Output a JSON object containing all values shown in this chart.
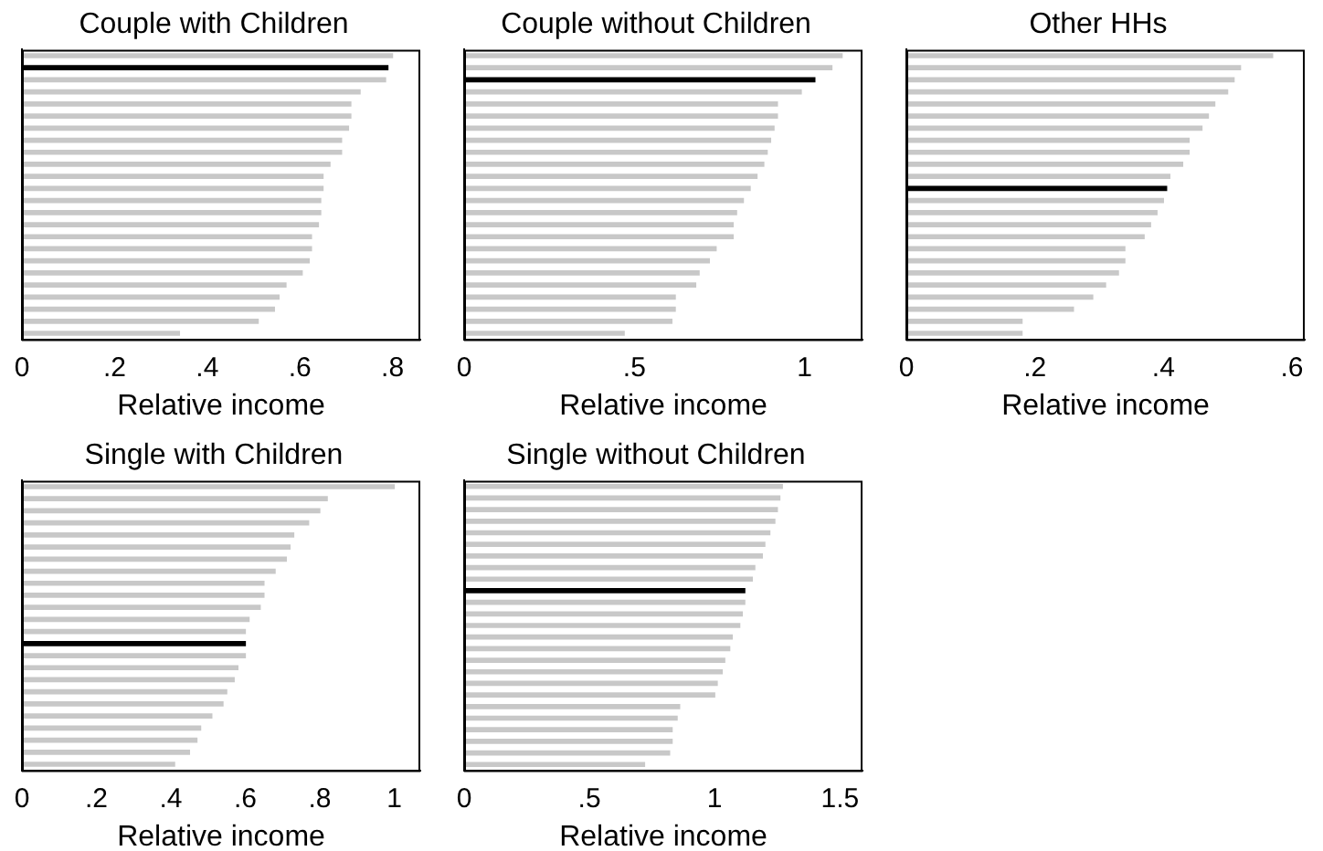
{
  "chart_data": [
    {
      "type": "bar",
      "orientation": "horizontal",
      "title": "Couple with Children",
      "xlabel": "Relative income",
      "tick_labels": "x",
      "grid": false,
      "categories": [
        null,
        null,
        null,
        null,
        null,
        null,
        null,
        null,
        null,
        null,
        null,
        null,
        null,
        null,
        null,
        null,
        null,
        null,
        null,
        null,
        null,
        null,
        null,
        null
      ],
      "values": [
        0.8,
        0.79,
        0.785,
        0.73,
        0.71,
        0.71,
        0.705,
        0.69,
        0.69,
        0.665,
        0.65,
        0.65,
        0.645,
        0.645,
        0.64,
        0.625,
        0.625,
        0.62,
        0.605,
        0.57,
        0.555,
        0.545,
        0.51,
        0.34
      ],
      "colors": [
        "#c8c8c8",
        "#000000",
        "#c8c8c8",
        "#c8c8c8",
        "#c8c8c8",
        "#c8c8c8",
        "#c8c8c8",
        "#c8c8c8",
        "#c8c8c8",
        "#c8c8c8",
        "#c8c8c8",
        "#c8c8c8",
        "#c8c8c8",
        "#c8c8c8",
        "#c8c8c8",
        "#c8c8c8",
        "#c8c8c8",
        "#c8c8c8",
        "#c8c8c8",
        "#c8c8c8",
        "#c8c8c8",
        "#c8c8c8",
        "#c8c8c8",
        "#c8c8c8"
      ],
      "xlim": [
        0,
        0.86
      ],
      "xticks": [
        0,
        {
          "value": 0.2,
          "label": ".2"
        },
        {
          "value": 0.4,
          "label": ".4"
        },
        {
          "value": 0.6,
          "label": ".6"
        },
        {
          "value": 0.8,
          "label": ".8"
        }
      ]
    },
    {
      "type": "bar",
      "orientation": "horizontal",
      "title": "Couple without Children",
      "xlabel": "Relative income",
      "tick_labels": "x",
      "grid": false,
      "categories": [
        null,
        null,
        null,
        null,
        null,
        null,
        null,
        null,
        null,
        null,
        null,
        null,
        null,
        null,
        null,
        null,
        null,
        null,
        null,
        null,
        null,
        null,
        null,
        null
      ],
      "values": [
        1.11,
        1.08,
        1.03,
        0.99,
        0.92,
        0.92,
        0.91,
        0.9,
        0.89,
        0.88,
        0.86,
        0.84,
        0.82,
        0.8,
        0.79,
        0.79,
        0.74,
        0.72,
        0.69,
        0.68,
        0.62,
        0.62,
        0.61,
        0.47
      ],
      "colors": [
        "#c8c8c8",
        "#c8c8c8",
        "#000000",
        "#c8c8c8",
        "#c8c8c8",
        "#c8c8c8",
        "#c8c8c8",
        "#c8c8c8",
        "#c8c8c8",
        "#c8c8c8",
        "#c8c8c8",
        "#c8c8c8",
        "#c8c8c8",
        "#c8c8c8",
        "#c8c8c8",
        "#c8c8c8",
        "#c8c8c8",
        "#c8c8c8",
        "#c8c8c8",
        "#c8c8c8",
        "#c8c8c8",
        "#c8c8c8",
        "#c8c8c8",
        "#c8c8c8"
      ],
      "xlim": [
        0,
        1.17
      ],
      "xticks": [
        0,
        {
          "value": 0.5,
          "label": ".5"
        },
        1
      ]
    },
    {
      "type": "bar",
      "orientation": "horizontal",
      "title": "Other HHs",
      "xlabel": "Relative income",
      "tick_labels": "x",
      "grid": false,
      "categories": [
        null,
        null,
        null,
        null,
        null,
        null,
        null,
        null,
        null,
        null,
        null,
        null,
        null,
        null,
        null,
        null,
        null,
        null,
        null,
        null,
        null,
        null,
        null,
        null
      ],
      "values": [
        0.57,
        0.52,
        0.51,
        0.5,
        0.48,
        0.47,
        0.46,
        0.44,
        0.44,
        0.43,
        0.41,
        0.405,
        0.4,
        0.39,
        0.38,
        0.37,
        0.34,
        0.34,
        0.33,
        0.31,
        0.29,
        0.26,
        0.18,
        0.18
      ],
      "colors": [
        "#c8c8c8",
        "#c8c8c8",
        "#c8c8c8",
        "#c8c8c8",
        "#c8c8c8",
        "#c8c8c8",
        "#c8c8c8",
        "#c8c8c8",
        "#c8c8c8",
        "#c8c8c8",
        "#c8c8c8",
        "#000000",
        "#c8c8c8",
        "#c8c8c8",
        "#c8c8c8",
        "#c8c8c8",
        "#c8c8c8",
        "#c8c8c8",
        "#c8c8c8",
        "#c8c8c8",
        "#c8c8c8",
        "#c8c8c8",
        "#c8c8c8",
        "#c8c8c8"
      ],
      "xlim": [
        0,
        0.62
      ],
      "xticks": [
        0,
        {
          "value": 0.2,
          "label": ".2"
        },
        {
          "value": 0.4,
          "label": ".4"
        },
        {
          "value": 0.6,
          "label": ".6"
        }
      ]
    },
    {
      "type": "bar",
      "orientation": "horizontal",
      "title": "Single with Children",
      "xlabel": "Relative income",
      "tick_labels": "x",
      "grid": false,
      "categories": [
        null,
        null,
        null,
        null,
        null,
        null,
        null,
        null,
        null,
        null,
        null,
        null,
        null,
        null,
        null,
        null,
        null,
        null,
        null,
        null,
        null,
        null,
        null,
        null
      ],
      "values": [
        1.0,
        0.82,
        0.8,
        0.77,
        0.73,
        0.72,
        0.71,
        0.68,
        0.65,
        0.65,
        0.64,
        0.61,
        0.6,
        0.6,
        0.6,
        0.58,
        0.57,
        0.55,
        0.54,
        0.51,
        0.48,
        0.47,
        0.45,
        0.41
      ],
      "colors": [
        "#c8c8c8",
        "#c8c8c8",
        "#c8c8c8",
        "#c8c8c8",
        "#c8c8c8",
        "#c8c8c8",
        "#c8c8c8",
        "#c8c8c8",
        "#c8c8c8",
        "#c8c8c8",
        "#c8c8c8",
        "#c8c8c8",
        "#c8c8c8",
        "#000000",
        "#c8c8c8",
        "#c8c8c8",
        "#c8c8c8",
        "#c8c8c8",
        "#c8c8c8",
        "#c8c8c8",
        "#c8c8c8",
        "#c8c8c8",
        "#c8c8c8",
        "#c8c8c8"
      ],
      "xlim": [
        0,
        1.07
      ],
      "xticks": [
        0,
        {
          "value": 0.2,
          "label": ".2"
        },
        {
          "value": 0.4,
          "label": ".4"
        },
        {
          "value": 0.6,
          "label": ".6"
        },
        {
          "value": 0.8,
          "label": ".8"
        },
        1
      ]
    },
    {
      "type": "bar",
      "orientation": "horizontal",
      "title": "Single without Children",
      "xlabel": "Relative income",
      "tick_labels": "x",
      "grid": false,
      "categories": [
        null,
        null,
        null,
        null,
        null,
        null,
        null,
        null,
        null,
        null,
        null,
        null,
        null,
        null,
        null,
        null,
        null,
        null,
        null,
        null,
        null,
        null,
        null,
        null,
        null
      ],
      "values": [
        1.27,
        1.26,
        1.25,
        1.24,
        1.22,
        1.2,
        1.19,
        1.16,
        1.15,
        1.12,
        1.12,
        1.11,
        1.1,
        1.07,
        1.06,
        1.04,
        1.03,
        1.01,
        1.0,
        0.86,
        0.85,
        0.83,
        0.83,
        0.82,
        0.72
      ],
      "colors": [
        "#c8c8c8",
        "#c8c8c8",
        "#c8c8c8",
        "#c8c8c8",
        "#c8c8c8",
        "#c8c8c8",
        "#c8c8c8",
        "#c8c8c8",
        "#c8c8c8",
        "#000000",
        "#c8c8c8",
        "#c8c8c8",
        "#c8c8c8",
        "#c8c8c8",
        "#c8c8c8",
        "#c8c8c8",
        "#c8c8c8",
        "#c8c8c8",
        "#c8c8c8",
        "#c8c8c8",
        "#c8c8c8",
        "#c8c8c8",
        "#c8c8c8",
        "#c8c8c8",
        "#c8c8c8"
      ],
      "xlim": [
        0,
        1.59
      ],
      "xticks": [
        0,
        {
          "value": 0.5,
          "label": ".5"
        },
        1,
        1.5
      ]
    }
  ]
}
